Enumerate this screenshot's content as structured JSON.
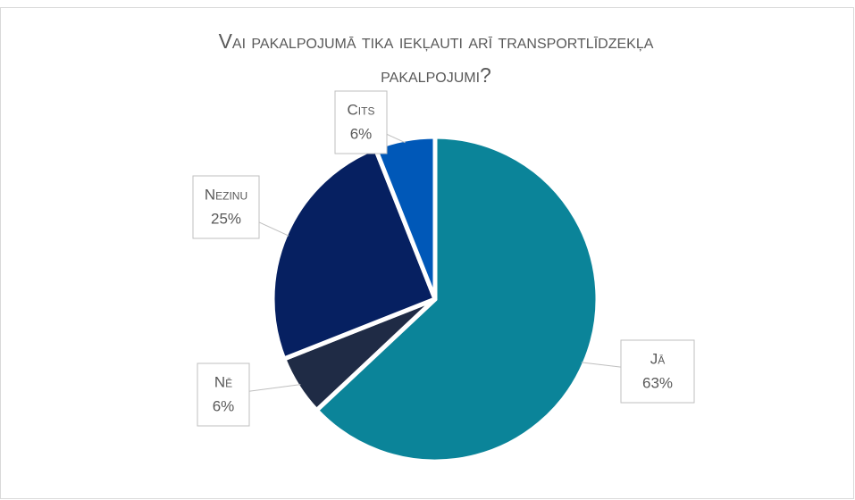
{
  "chart_data": {
    "type": "pie",
    "title": "Vai pakalpojumā tika iekļauti arī transportlīdzekļa pakalpojumi?",
    "categories": [
      "Jā",
      "Nē",
      "Nezinu",
      "Cits"
    ],
    "values": [
      63,
      6,
      25,
      6
    ],
    "value_labels": [
      "63%",
      "6%",
      "25%",
      "6%"
    ],
    "colors": [
      "#0b8499",
      "#1f2b45",
      "#062061",
      "#0058b8"
    ]
  }
}
